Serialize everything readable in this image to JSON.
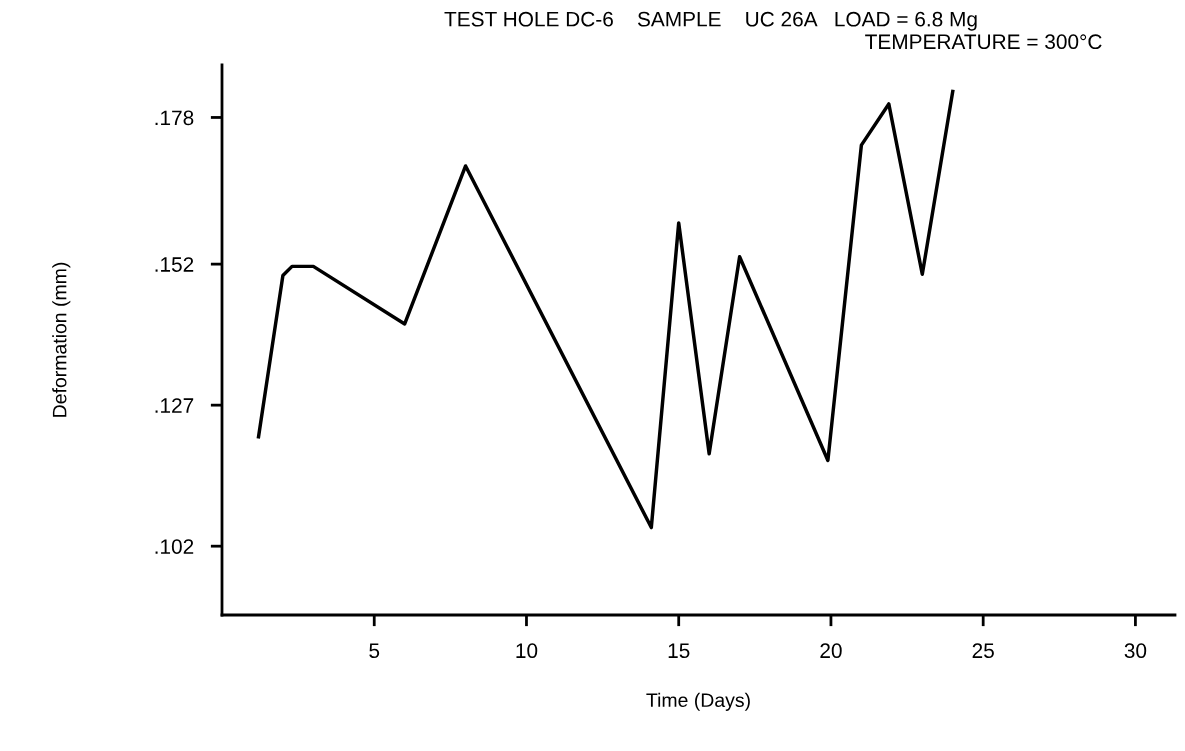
{
  "chart_data": {
    "type": "line",
    "title": "TEST HOLE DC-6    SAMPLE    UC 26A   LOAD = 6.8 Mg",
    "subtitle": "TEMPERATURE = 300°C",
    "xlabel": "Time (Days)",
    "ylabel": "Deformation (mm)",
    "x": [
      1.2,
      2.0,
      2.3,
      3.0,
      6.0,
      8.0,
      14.1,
      15.0,
      16.0,
      17.0,
      19.9,
      21.0,
      21.9,
      23.0,
      24.0
    ],
    "series": [
      {
        "color": "#000000",
        "values": [
          0.1214,
          0.15,
          0.1516,
          0.1516,
          0.1414,
          0.1694,
          0.1053,
          0.1593,
          0.1184,
          0.1533,
          0.1172,
          0.1731,
          0.1804,
          0.1502,
          0.1826
        ]
      }
    ],
    "xlim": [
      0,
      31.3
    ],
    "ylim": [
      0.0898,
      0.1873
    ],
    "xticks": [
      5,
      10,
      15,
      20,
      25,
      30
    ],
    "yticks": [
      {
        "value": 0.178,
        "label": ".178"
      },
      {
        "value": 0.152,
        "label": ".152"
      },
      {
        "value": 0.127,
        "label": ".127"
      },
      {
        "value": 0.102,
        "label": ".102"
      }
    ],
    "grid": false,
    "legend": false,
    "marker": "none",
    "line_style": "solid"
  }
}
